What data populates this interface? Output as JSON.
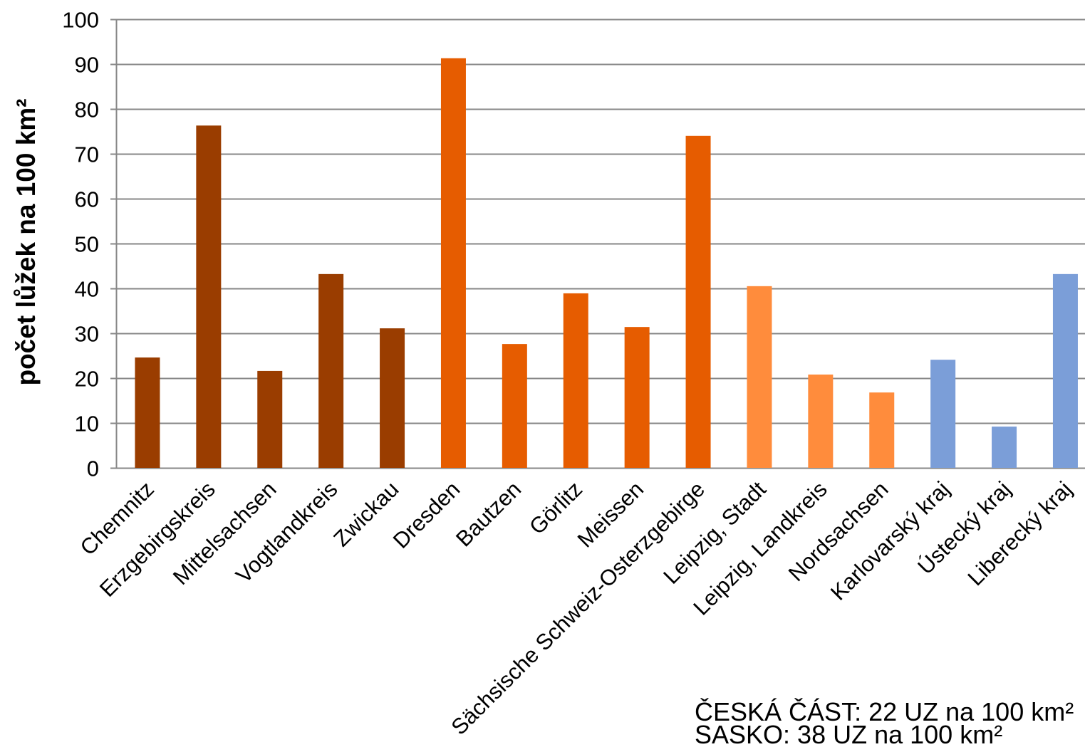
{
  "chart_data": {
    "type": "bar",
    "ylabel": "počet lůžek na 100 km²",
    "ylim": [
      0,
      100
    ],
    "yticks": [
      0,
      10,
      20,
      30,
      40,
      50,
      60,
      70,
      80,
      90,
      100
    ],
    "grid": true,
    "categories": [
      "Chemnitz",
      "Erzgebirgskreis",
      "Mittelsachsen",
      "Vogtlandkreis",
      "Zwickau",
      "Dresden",
      "Bautzen",
      "Görlitz",
      "Meissen",
      "Sächsische Schweiz-Osterzgebirge",
      "Leipzig, Stadt",
      "Leipzig, Landkreis",
      "Nordsachsen",
      "Karlovarský kraj",
      "Ústecký kraj",
      "Liberecký kraj"
    ],
    "values": [
      24.6,
      76.3,
      21.6,
      43.2,
      31.1,
      91.3,
      27.6,
      38.9,
      31.4,
      74.0,
      40.5,
      20.8,
      16.8,
      24.1,
      9.2,
      43.2
    ],
    "colors": [
      "#9A3D00",
      "#9A3D00",
      "#9A3D00",
      "#9A3D00",
      "#9A3D00",
      "#E65C00",
      "#E65C00",
      "#E65C00",
      "#E65C00",
      "#E65C00",
      "#FF8C3C",
      "#FF8C3C",
      "#FF8C3C",
      "#7B9ED8",
      "#7B9ED8",
      "#7B9ED8"
    ],
    "annotations": [
      "ČESKÁ ČÁST: 22 UZ na 100 km²",
      "SASKO: 38 UZ na 100 km²"
    ]
  }
}
